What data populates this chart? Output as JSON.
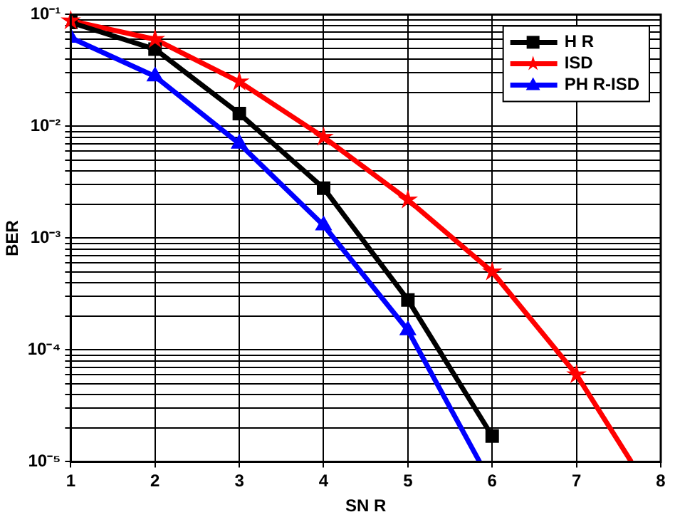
{
  "chart_data": {
    "type": "line",
    "xlabel": "SN R",
    "ylabel": "BER",
    "log": "y",
    "grid": true,
    "legend": "top right",
    "line_style": "solid",
    "xlim": [
      1,
      8
    ],
    "xticks": [
      1,
      2,
      3,
      4,
      5,
      6,
      7,
      8
    ],
    "ylim": [
      1e-05,
      0.1
    ],
    "yticks": [
      {
        "value": 1e-05,
        "label": "10⁻⁵"
      },
      {
        "value": 2e-05,
        "label": null
      },
      {
        "value": 3e-05,
        "label": null
      },
      {
        "value": 4e-05,
        "label": null
      },
      {
        "value": 5e-05,
        "label": null
      },
      {
        "value": 6e-05,
        "label": null
      },
      {
        "value": 7e-05,
        "label": null
      },
      {
        "value": 8e-05,
        "label": null
      },
      {
        "value": 9e-05,
        "label": null
      },
      {
        "value": 0.0001,
        "label": "10⁻⁴"
      },
      {
        "value": 0.0002,
        "label": null
      },
      {
        "value": 0.0003,
        "label": null
      },
      {
        "value": 0.0004,
        "label": null
      },
      {
        "value": 0.0005,
        "label": null
      },
      {
        "value": 0.0006,
        "label": null
      },
      {
        "value": 0.0007,
        "label": null
      },
      {
        "value": 0.0008,
        "label": null
      },
      {
        "value": 0.0009,
        "label": null
      },
      {
        "value": 0.001,
        "label": "10⁻³"
      },
      {
        "value": 0.002,
        "label": null
      },
      {
        "value": 0.003,
        "label": null
      },
      {
        "value": 0.004,
        "label": null
      },
      {
        "value": 0.005,
        "label": null
      },
      {
        "value": 0.006,
        "label": null
      },
      {
        "value": 0.007,
        "label": null
      },
      {
        "value": 0.008,
        "label": null
      },
      {
        "value": 0.009,
        "label": null
      },
      {
        "value": 0.01,
        "label": "10⁻²"
      },
      {
        "value": 0.02,
        "label": null
      },
      {
        "value": 0.03,
        "label": null
      },
      {
        "value": 0.04,
        "label": null
      },
      {
        "value": 0.05,
        "label": null
      },
      {
        "value": 0.06,
        "label": null
      },
      {
        "value": 0.07,
        "label": null
      },
      {
        "value": 0.08,
        "label": null
      },
      {
        "value": 0.09,
        "label": null
      },
      {
        "value": 0.1,
        "label": "10⁻¹"
      }
    ],
    "series": [
      {
        "name": "H R",
        "color": "#000000",
        "marker": "square",
        "x": [
          1,
          2,
          3,
          4,
          5,
          6
        ],
        "values": [
          0.085,
          0.049,
          0.013,
          0.0028,
          0.00028,
          1.7e-05
        ]
      },
      {
        "name": "ISD",
        "color": "#ff0000",
        "marker": "star",
        "x": [
          1,
          2,
          3,
          4,
          5,
          6,
          7,
          7.65
        ],
        "values": [
          0.088,
          0.06,
          0.025,
          0.008,
          0.0022,
          0.0005,
          6e-05,
          1e-05
        ]
      },
      {
        "name": "PH R-ISD",
        "color": "#0000ff",
        "marker": "triangle",
        "x": [
          1,
          2,
          3,
          4,
          5,
          5.85
        ],
        "values": [
          0.062,
          0.028,
          0.007,
          0.0013,
          0.00015,
          1e-05
        ]
      }
    ]
  }
}
